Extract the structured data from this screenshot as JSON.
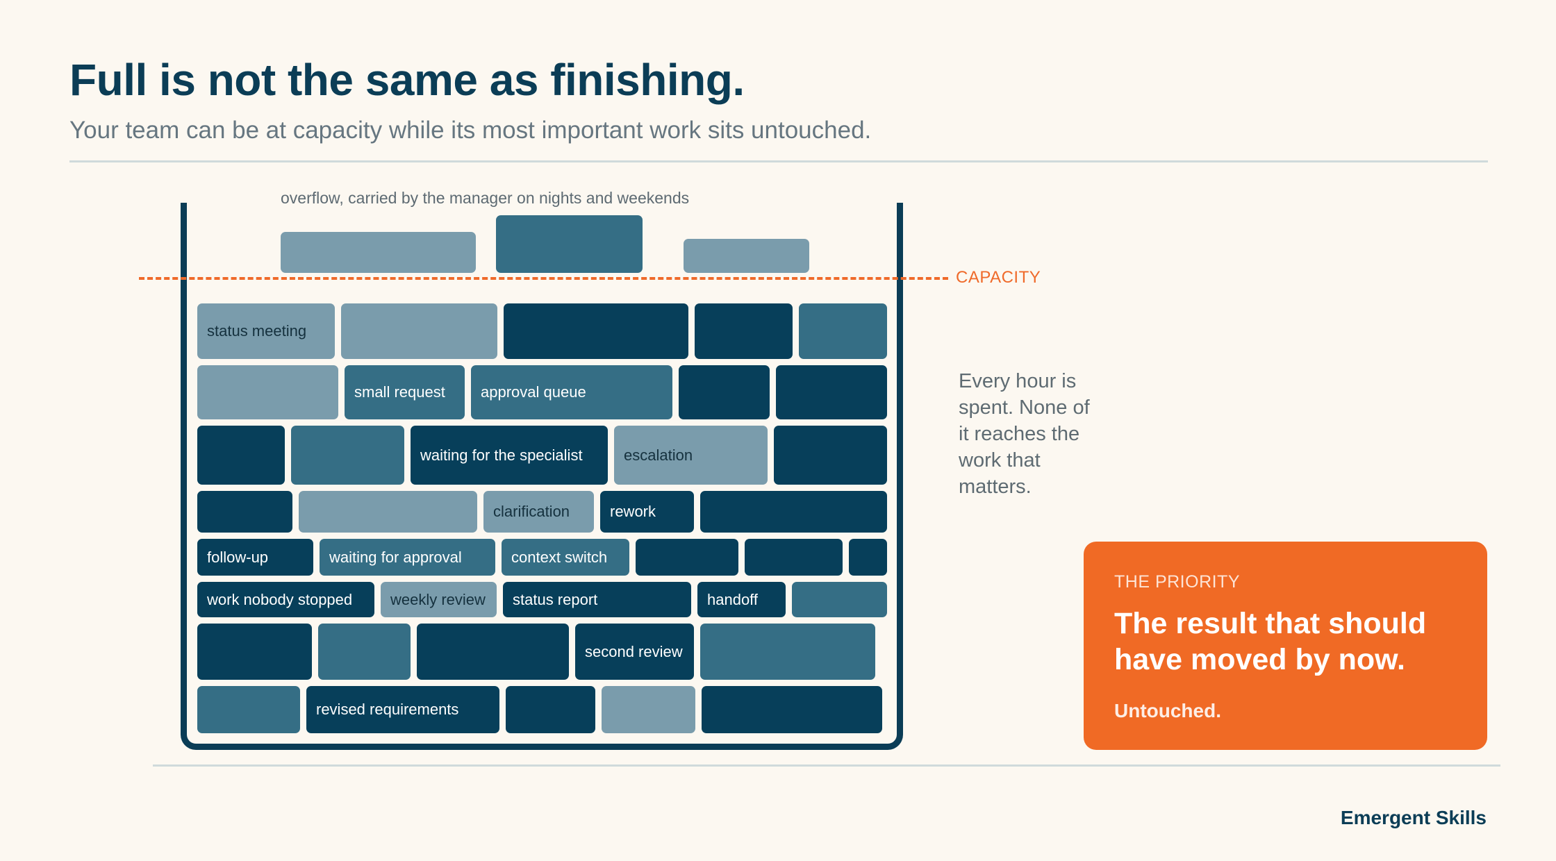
{
  "header": {
    "title": "Full is not the same as finishing.",
    "subtitle": "Your team can be at capacity while its most important work sits untouched."
  },
  "diagram": {
    "overflow_label": "overflow, carried by the manager on nights and weekends",
    "capacity_label": "CAPACITY",
    "block_labels": {
      "status_meeting": "status meeting",
      "small_request": "small request",
      "approval_queue": "approval queue",
      "waiting_specialist": "waiting for the specialist",
      "escalation": "escalation",
      "clarification": "clarification",
      "rework": "rework",
      "follow_up": "follow-up",
      "waiting_approval": "waiting for approval",
      "context_switch": "context switch",
      "work_nobody_stopped": "work nobody stopped",
      "weekly_review": "weekly review",
      "status_report": "status report",
      "handoff": "handoff",
      "second_review": "second review",
      "revised_requirements": "revised requirements"
    },
    "colors": {
      "dark": "#073f5a",
      "mid": "#356e85",
      "light": "#7a9cac",
      "capacity": "#ef6a2a"
    }
  },
  "side_note": "Every hour is spent. None of it reaches the work that matters.",
  "priority": {
    "kicker": "THE PRIORITY",
    "headline": "The result that should have moved by now.",
    "status": "Untouched.",
    "color": "#f06a25"
  },
  "footer": {
    "brand": "Emergent Skills"
  }
}
